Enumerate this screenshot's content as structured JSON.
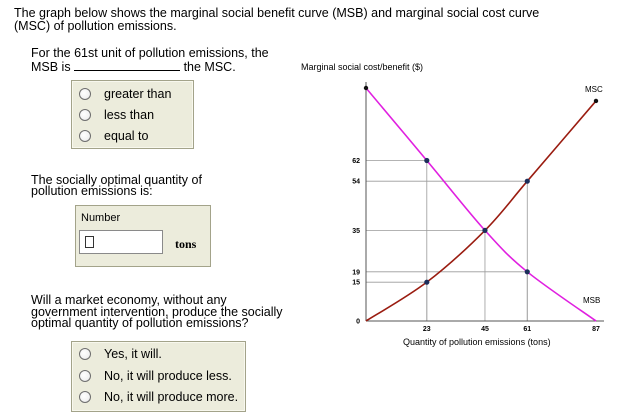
{
  "intro": {
    "line1": "The graph below shows the marginal social benefit curve (MSB) and marginal social cost curve",
    "line2": "(MSC) of pollution emissions."
  },
  "question1": {
    "prefix_line1": "For the 61st unit of pollution emissions, the",
    "prefix_line2_start": "MSB is",
    "suffix": "the MSC.",
    "options": [
      "greater than",
      "less than",
      "equal to"
    ]
  },
  "question2": {
    "line1": "The socially optimal quantity of",
    "line2": "pollution emissions is:",
    "field_label": "Number",
    "field_value": "",
    "units": "tons"
  },
  "question3": {
    "line1": "Will a market economy, without any",
    "line2": "government intervention, produce the socially",
    "line3": "optimal quantity of pollution emissions?",
    "options": [
      "Yes, it will.",
      "No, it will produce less.",
      "No, it will produce more."
    ]
  },
  "colors": {
    "msb_curve": "#e020e0",
    "msc_curve": "#9a1c10",
    "option_panel": "#ececdc",
    "grid": "#9a9a9a"
  },
  "chart_data": {
    "type": "line",
    "ylabel": "Marginal social cost/benefit ($)",
    "xlabel": "Quantity of pollution emissions (tons)",
    "x_ticks": [
      23,
      45,
      61,
      87
    ],
    "y_ticks": [
      0,
      15,
      19,
      35,
      54,
      62
    ],
    "xlim": [
      0,
      87
    ],
    "ylim": [
      0,
      90
    ],
    "series": [
      {
        "name": "MSC",
        "points": [
          [
            0,
            0
          ],
          [
            23,
            15
          ],
          [
            45,
            35
          ],
          [
            61,
            54
          ],
          [
            87,
            85
          ]
        ],
        "markers": [
          [
            23,
            15
          ],
          [
            61,
            54
          ]
        ]
      },
      {
        "name": "MSB",
        "points": [
          [
            0,
            90
          ],
          [
            23,
            62
          ],
          [
            45,
            35
          ],
          [
            61,
            19
          ],
          [
            87,
            0
          ]
        ],
        "markers": [
          [
            23,
            62
          ],
          [
            61,
            19
          ]
        ]
      }
    ],
    "intersection": [
      45,
      35
    ],
    "guide_lines": [
      [
        23,
        62
      ],
      [
        23,
        15
      ],
      [
        61,
        54
      ],
      [
        61,
        19
      ],
      [
        45,
        35
      ]
    ]
  }
}
